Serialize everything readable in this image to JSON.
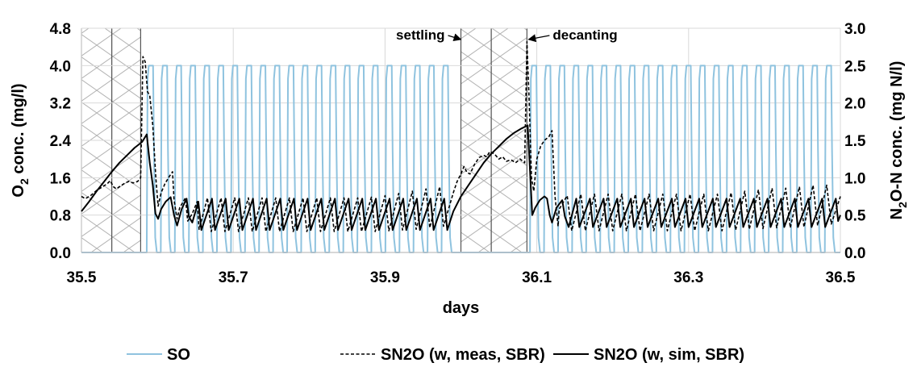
{
  "chart_data": {
    "type": "line",
    "xlabel": "days",
    "ylabel_left": {
      "main": "O",
      "sub": "2",
      "rest": " conc. (mg/l)"
    },
    "ylabel_right": {
      "main": "N",
      "sub": "2",
      "rest": "O-N conc. (mg N/l)"
    },
    "xlim": [
      35.5,
      36.5
    ],
    "ylim_left": [
      0,
      4.8
    ],
    "ylim_right": [
      0,
      3.0
    ],
    "x_ticks": [
      "35.5",
      "35.7",
      "35.9",
      "36.1",
      "36.3",
      "36.5"
    ],
    "x_tick_values": [
      35.5,
      35.7,
      35.9,
      36.1,
      36.3,
      36.5
    ],
    "y_left_ticks": [
      "0.0",
      "0.8",
      "1.6",
      "2.4",
      "3.2",
      "4.0",
      "4.8"
    ],
    "y_left_tick_values": [
      0,
      0.8,
      1.6,
      2.4,
      3.2,
      4.0,
      4.8
    ],
    "y_right_ticks": [
      "0.0",
      "0.5",
      "1.0",
      "1.5",
      "2.0",
      "2.5",
      "3.0"
    ],
    "y_right_tick_values": [
      0,
      0.5,
      1.0,
      1.5,
      2.0,
      2.5,
      3.0
    ],
    "grid": true,
    "legend_position": "bottom",
    "hatched_phases": [
      {
        "x_start": 35.5,
        "x_end": 35.54
      },
      {
        "x_start": 35.54,
        "x_end": 35.578
      },
      {
        "x_start": 36.0,
        "x_end": 36.04
      },
      {
        "x_start": 36.04,
        "x_end": 36.087
      }
    ],
    "annotations": [
      {
        "text": "settling",
        "x": 36.0,
        "y_right": 2.85
      },
      {
        "text": "decanting",
        "x": 36.087,
        "y_right": 2.85
      }
    ],
    "series": [
      {
        "name": "SO",
        "axis": "left",
        "color": "#8fc3df",
        "style": "solid",
        "on_value": 4.0,
        "aeration_start_times": [
          35.586,
          35.6045,
          35.623,
          35.6415,
          35.66,
          35.6785,
          35.697,
          35.7155,
          35.734,
          35.7525,
          35.771,
          35.7895,
          35.808,
          35.8265,
          35.845,
          35.8635,
          35.882,
          35.9005,
          35.919,
          35.9375,
          35.956,
          35.9745,
          36.091,
          36.1095,
          36.128,
          36.1465,
          36.165,
          36.1835,
          36.202,
          36.2205,
          36.239,
          36.2575,
          36.276,
          36.2945,
          36.313,
          36.3315,
          36.35,
          36.3685,
          36.387,
          36.4055,
          36.424,
          36.4425,
          36.461,
          36.4795
        ],
        "aeration_on_duration": 0.0095
      },
      {
        "name": "SN2O (w, meas, SBR)",
        "axis": "right",
        "color": "#000000",
        "style": "dashed",
        "points": [
          [
            35.5,
            0.75
          ],
          [
            35.505,
            0.72
          ],
          [
            35.512,
            0.76
          ],
          [
            35.52,
            0.83
          ],
          [
            35.528,
            0.88
          ],
          [
            35.534,
            0.92
          ],
          [
            35.538,
            0.96
          ],
          [
            35.542,
            0.88
          ],
          [
            35.546,
            0.85
          ],
          [
            35.55,
            0.88
          ],
          [
            35.556,
            0.92
          ],
          [
            35.562,
            0.95
          ],
          [
            35.568,
            0.93
          ],
          [
            35.574,
            0.95
          ],
          [
            35.578,
            1.0
          ],
          [
            35.581,
            2.62
          ],
          [
            35.584,
            2.55
          ],
          [
            35.587,
            2.15
          ],
          [
            35.59,
            2.1
          ],
          [
            35.594,
            1.7
          ],
          [
            35.598,
            1.0
          ],
          [
            35.601,
            0.62
          ],
          [
            35.605,
            0.8
          ],
          [
            35.61,
            0.92
          ],
          [
            35.616,
            1.02
          ],
          [
            35.62,
            1.08
          ],
          [
            35.622,
            0.7
          ],
          [
            35.626,
            0.45
          ],
          [
            35.6295,
            0.6
          ],
          [
            35.637,
            0.73
          ],
          [
            35.64,
            0.42
          ],
          [
            35.646,
            0.52
          ],
          [
            35.6525,
            0.68
          ],
          [
            35.655,
            0.31
          ],
          [
            35.666,
            0.73
          ],
          [
            35.671,
            0.28
          ],
          [
            35.684,
            0.73
          ],
          [
            35.689,
            0.28
          ],
          [
            35.702,
            0.73
          ],
          [
            35.707,
            0.28
          ],
          [
            35.72,
            0.73
          ],
          [
            35.725,
            0.28
          ],
          [
            35.738,
            0.73
          ],
          [
            35.743,
            0.28
          ],
          [
            35.756,
            0.73
          ],
          [
            35.761,
            0.28
          ],
          [
            35.774,
            0.73
          ],
          [
            35.779,
            0.28
          ],
          [
            35.792,
            0.73
          ],
          [
            35.797,
            0.28
          ],
          [
            35.81,
            0.73
          ],
          [
            35.815,
            0.28
          ],
          [
            35.828,
            0.73
          ],
          [
            35.833,
            0.28
          ],
          [
            35.846,
            0.73
          ],
          [
            35.851,
            0.28
          ],
          [
            35.864,
            0.73
          ],
          [
            35.869,
            0.28
          ],
          [
            35.882,
            0.74
          ],
          [
            35.887,
            0.28
          ],
          [
            35.9,
            0.76
          ],
          [
            35.905,
            0.29
          ],
          [
            35.918,
            0.79
          ],
          [
            35.923,
            0.3
          ],
          [
            35.936,
            0.82
          ],
          [
            35.941,
            0.31
          ],
          [
            35.954,
            0.85
          ],
          [
            35.959,
            0.33
          ],
          [
            35.972,
            0.88
          ],
          [
            35.977,
            0.35
          ],
          [
            35.99,
            0.8
          ],
          [
            35.995,
            0.95
          ],
          [
            36.0,
            1.05
          ],
          [
            36.004,
            1.15
          ],
          [
            36.008,
            1.07
          ],
          [
            36.012,
            1.05
          ],
          [
            36.018,
            1.18
          ],
          [
            36.024,
            1.27
          ],
          [
            36.03,
            1.3
          ],
          [
            36.034,
            1.28
          ],
          [
            36.038,
            1.35
          ],
          [
            36.044,
            1.32
          ],
          [
            36.05,
            1.25
          ],
          [
            36.055,
            1.28
          ],
          [
            36.06,
            1.22
          ],
          [
            36.066,
            1.24
          ],
          [
            36.072,
            1.2
          ],
          [
            36.078,
            1.25
          ],
          [
            36.084,
            1.2
          ],
          [
            36.087,
            2.82
          ],
          [
            36.09,
            2.0
          ],
          [
            36.093,
            1.0
          ],
          [
            36.096,
            0.82
          ],
          [
            36.1,
            1.25
          ],
          [
            36.105,
            1.42
          ],
          [
            36.11,
            1.5
          ],
          [
            36.116,
            1.55
          ],
          [
            36.12,
            1.63
          ],
          [
            36.124,
            0.75
          ],
          [
            36.128,
            0.35
          ],
          [
            36.1295,
            0.58
          ],
          [
            36.14,
            0.76
          ],
          [
            36.146,
            0.29
          ],
          [
            36.158,
            0.78
          ],
          [
            36.164,
            0.29
          ],
          [
            36.176,
            0.78
          ],
          [
            36.182,
            0.29
          ],
          [
            36.194,
            0.78
          ],
          [
            36.2,
            0.29
          ],
          [
            36.212,
            0.78
          ],
          [
            36.218,
            0.29
          ],
          [
            36.23,
            0.78
          ],
          [
            36.236,
            0.29
          ],
          [
            36.248,
            0.78
          ],
          [
            36.254,
            0.29
          ],
          [
            36.266,
            0.78
          ],
          [
            36.272,
            0.29
          ],
          [
            36.284,
            0.78
          ],
          [
            36.29,
            0.29
          ],
          [
            36.302,
            0.78
          ],
          [
            36.308,
            0.29
          ],
          [
            36.32,
            0.78
          ],
          [
            36.326,
            0.29
          ],
          [
            36.338,
            0.78
          ],
          [
            36.344,
            0.29
          ],
          [
            36.356,
            0.8
          ],
          [
            36.362,
            0.3
          ],
          [
            36.374,
            0.82
          ],
          [
            36.38,
            0.31
          ],
          [
            36.392,
            0.84
          ],
          [
            36.398,
            0.32
          ],
          [
            36.41,
            0.86
          ],
          [
            36.416,
            0.33
          ],
          [
            36.428,
            0.86
          ],
          [
            36.434,
            0.33
          ],
          [
            36.446,
            0.88
          ],
          [
            36.452,
            0.34
          ],
          [
            36.464,
            0.9
          ],
          [
            36.47,
            0.36
          ],
          [
            36.482,
            0.9
          ],
          [
            36.488,
            0.38
          ],
          [
            36.5,
            0.75
          ]
        ]
      },
      {
        "name": "SN2O (w, sim, SBR)",
        "axis": "right",
        "color": "#000000",
        "style": "solid",
        "points": [
          [
            35.5,
            0.55
          ],
          [
            35.51,
            0.68
          ],
          [
            35.52,
            0.82
          ],
          [
            35.53,
            0.95
          ],
          [
            35.54,
            1.08
          ],
          [
            35.55,
            1.2
          ],
          [
            35.56,
            1.3
          ],
          [
            35.57,
            1.4
          ],
          [
            35.58,
            1.48
          ],
          [
            35.586,
            1.58
          ],
          [
            35.59,
            1.2
          ],
          [
            35.594,
            0.9
          ],
          [
            35.5975,
            0.52
          ],
          [
            35.601,
            0.45
          ],
          [
            35.605,
            0.58
          ],
          [
            35.611,
            0.68
          ],
          [
            35.6175,
            0.74
          ],
          [
            35.622,
            0.5
          ],
          [
            35.626,
            0.36
          ],
          [
            35.632,
            0.58
          ],
          [
            35.6385,
            0.72
          ],
          [
            35.6415,
            0.48
          ],
          [
            35.646,
            0.4
          ],
          [
            35.654,
            0.68
          ],
          [
            35.658,
            0.3
          ],
          [
            35.672,
            0.72
          ],
          [
            35.676,
            0.3
          ],
          [
            35.69,
            0.72
          ],
          [
            35.694,
            0.3
          ],
          [
            35.708,
            0.72
          ],
          [
            35.712,
            0.3
          ],
          [
            35.726,
            0.72
          ],
          [
            35.73,
            0.3
          ],
          [
            35.744,
            0.72
          ],
          [
            35.748,
            0.3
          ],
          [
            35.762,
            0.72
          ],
          [
            35.766,
            0.3
          ],
          [
            35.78,
            0.72
          ],
          [
            35.784,
            0.3
          ],
          [
            35.798,
            0.72
          ],
          [
            35.802,
            0.3
          ],
          [
            35.816,
            0.72
          ],
          [
            35.82,
            0.3
          ],
          [
            35.834,
            0.72
          ],
          [
            35.838,
            0.3
          ],
          [
            35.852,
            0.72
          ],
          [
            35.856,
            0.3
          ],
          [
            35.87,
            0.72
          ],
          [
            35.874,
            0.3
          ],
          [
            35.888,
            0.72
          ],
          [
            35.892,
            0.3
          ],
          [
            35.906,
            0.72
          ],
          [
            35.91,
            0.3
          ],
          [
            35.924,
            0.72
          ],
          [
            35.928,
            0.3
          ],
          [
            35.942,
            0.72
          ],
          [
            35.946,
            0.3
          ],
          [
            35.96,
            0.72
          ],
          [
            35.964,
            0.3
          ],
          [
            35.978,
            0.72
          ],
          [
            35.982,
            0.3
          ],
          [
            35.99,
            0.55
          ],
          [
            36.0,
            0.75
          ],
          [
            36.01,
            0.9
          ],
          [
            36.02,
            1.05
          ],
          [
            36.03,
            1.2
          ],
          [
            36.04,
            1.32
          ],
          [
            36.05,
            1.42
          ],
          [
            36.06,
            1.52
          ],
          [
            36.07,
            1.6
          ],
          [
            36.08,
            1.66
          ],
          [
            36.088,
            1.7
          ],
          [
            36.091,
            1.1
          ],
          [
            36.094,
            0.5
          ],
          [
            36.098,
            0.6
          ],
          [
            36.104,
            0.7
          ],
          [
            36.11,
            0.75
          ],
          [
            36.1135,
            0.72
          ],
          [
            36.117,
            0.5
          ],
          [
            36.12,
            0.4
          ],
          [
            36.126,
            0.6
          ],
          [
            36.1335,
            0.7
          ],
          [
            36.137,
            0.48
          ],
          [
            36.142,
            0.34
          ],
          [
            36.152,
            0.72
          ],
          [
            36.156,
            0.34
          ],
          [
            36.17,
            0.72
          ],
          [
            36.174,
            0.34
          ],
          [
            36.188,
            0.72
          ],
          [
            36.192,
            0.34
          ],
          [
            36.206,
            0.72
          ],
          [
            36.21,
            0.34
          ],
          [
            36.224,
            0.72
          ],
          [
            36.228,
            0.34
          ],
          [
            36.242,
            0.72
          ],
          [
            36.246,
            0.34
          ],
          [
            36.26,
            0.72
          ],
          [
            36.264,
            0.34
          ],
          [
            36.278,
            0.72
          ],
          [
            36.282,
            0.34
          ],
          [
            36.296,
            0.72
          ],
          [
            36.3,
            0.34
          ],
          [
            36.314,
            0.72
          ],
          [
            36.318,
            0.34
          ],
          [
            36.332,
            0.72
          ],
          [
            36.336,
            0.34
          ],
          [
            36.35,
            0.72
          ],
          [
            36.354,
            0.34
          ],
          [
            36.368,
            0.72
          ],
          [
            36.372,
            0.34
          ],
          [
            36.386,
            0.72
          ],
          [
            36.39,
            0.34
          ],
          [
            36.404,
            0.72
          ],
          [
            36.408,
            0.34
          ],
          [
            36.422,
            0.72
          ],
          [
            36.426,
            0.34
          ],
          [
            36.44,
            0.72
          ],
          [
            36.444,
            0.34
          ],
          [
            36.458,
            0.72
          ],
          [
            36.462,
            0.34
          ],
          [
            36.476,
            0.72
          ],
          [
            36.48,
            0.34
          ],
          [
            36.494,
            0.72
          ],
          [
            36.497,
            0.42
          ],
          [
            36.5,
            0.5
          ]
        ]
      }
    ]
  }
}
